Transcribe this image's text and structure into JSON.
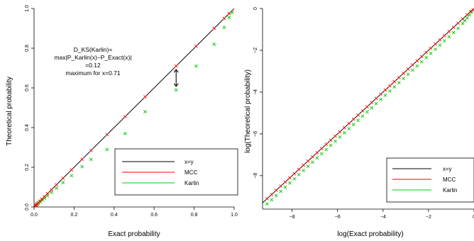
{
  "chart_data": [
    {
      "type": "scatter",
      "xlabel": "Exact probability",
      "ylabel": "Theoretical probability",
      "xlim": [
        0,
        1
      ],
      "ylim": [
        0,
        1
      ],
      "xticks": [
        "0.0",
        "0.2",
        "0.4",
        "0.6",
        "0.8",
        "1.0"
      ],
      "yticks": [
        "0.0",
        "0.2",
        "0.4",
        "0.6",
        "0.8",
        "1.0"
      ],
      "grid": false,
      "legend_position": "bottom-right",
      "annotation": {
        "lines": [
          "D_KS(Karlin)=",
          "max|P_Karlin(x)−P_Exact(x)|",
          "=0.12",
          "maximum for x=0.71"
        ],
        "arrow": {
          "x": 0.71,
          "y_from": 0.71,
          "y_to": 0.59
        }
      },
      "series": [
        {
          "name": "x=y",
          "kind": "line",
          "color": "#000000"
        },
        {
          "name": "MCC",
          "kind": "points",
          "color": "#ff0000",
          "x": [
            0.005,
            0.008,
            0.012,
            0.016,
            0.022,
            0.03,
            0.04,
            0.052,
            0.067,
            0.087,
            0.112,
            0.145,
            0.187,
            0.24,
            0.285,
            0.365,
            0.455,
            0.555,
            0.71,
            0.81,
            0.9,
            0.95,
            0.975,
            1.0
          ],
          "y": [
            0.005,
            0.008,
            0.012,
            0.016,
            0.022,
            0.03,
            0.04,
            0.052,
            0.067,
            0.087,
            0.112,
            0.145,
            0.187,
            0.24,
            0.285,
            0.365,
            0.455,
            0.555,
            0.71,
            0.81,
            0.9,
            0.95,
            0.975,
            1.0
          ]
        },
        {
          "name": "Karlin",
          "kind": "points",
          "color": "#00cc00",
          "x": [
            0.008,
            0.012,
            0.016,
            0.022,
            0.03,
            0.04,
            0.052,
            0.067,
            0.087,
            0.112,
            0.145,
            0.187,
            0.24,
            0.285,
            0.365,
            0.455,
            0.555,
            0.71,
            0.81,
            0.9,
            0.95,
            0.975,
            0.99
          ],
          "y": [
            0.007,
            0.01,
            0.014,
            0.019,
            0.026,
            0.034,
            0.044,
            0.057,
            0.074,
            0.095,
            0.123,
            0.158,
            0.203,
            0.24,
            0.29,
            0.37,
            0.48,
            0.59,
            0.71,
            0.82,
            0.905,
            0.955,
            0.98
          ]
        }
      ]
    },
    {
      "type": "scatter",
      "xlabel": "log(Exact probability)",
      "ylabel": "log(Theoretical probability)",
      "xlim": [
        -9.3,
        0
      ],
      "ylim": [
        -9.6,
        0
      ],
      "xticks": [
        "−8",
        "−6",
        "−4",
        "−2",
        "0"
      ],
      "yticks": [
        "−8",
        "−6",
        "−4",
        "−2",
        "0"
      ],
      "grid": false,
      "legend_position": "bottom-right",
      "series": [
        {
          "name": "x=y",
          "kind": "line",
          "color": "#000000"
        },
        {
          "name": "MCC",
          "kind": "points",
          "color": "#ff0000",
          "x": [
            -9.1,
            -8.9,
            -8.7,
            -8.5,
            -8.3,
            -8.1,
            -7.9,
            -7.7,
            -7.5,
            -7.3,
            -7.1,
            -6.9,
            -6.7,
            -6.5,
            -6.3,
            -6.1,
            -5.9,
            -5.7,
            -5.5,
            -5.3,
            -5.1,
            -4.9,
            -4.7,
            -4.5,
            -4.3,
            -4.1,
            -3.9,
            -3.7,
            -3.5,
            -3.3,
            -3.1,
            -2.9,
            -2.7,
            -2.5,
            -2.3,
            -2.1,
            -1.9,
            -1.7,
            -1.5,
            -1.3,
            -1.1,
            -0.9,
            -0.7,
            -0.5,
            -0.3,
            -0.15,
            -0.05,
            0.0
          ],
          "y": [
            -9.1,
            -8.9,
            -8.7,
            -8.5,
            -8.3,
            -8.1,
            -7.9,
            -7.7,
            -7.5,
            -7.3,
            -7.1,
            -6.9,
            -6.7,
            -6.5,
            -6.3,
            -6.1,
            -5.9,
            -5.7,
            -5.5,
            -5.3,
            -5.1,
            -4.9,
            -4.7,
            -4.5,
            -4.3,
            -4.1,
            -3.9,
            -3.7,
            -3.5,
            -3.3,
            -3.1,
            -2.9,
            -2.7,
            -2.5,
            -2.3,
            -2.1,
            -1.9,
            -1.7,
            -1.5,
            -1.3,
            -1.1,
            -0.9,
            -0.7,
            -0.5,
            -0.3,
            -0.15,
            -0.05,
            0.0
          ]
        },
        {
          "name": "Karlin",
          "kind": "points",
          "color": "#00cc00",
          "x": [
            -9.1,
            -8.9,
            -8.7,
            -8.5,
            -8.3,
            -8.1,
            -7.9,
            -7.7,
            -7.5,
            -7.3,
            -7.1,
            -6.9,
            -6.7,
            -6.5,
            -6.3,
            -6.1,
            -5.9,
            -5.7,
            -5.5,
            -5.3,
            -5.1,
            -4.9,
            -4.7,
            -4.5,
            -4.3,
            -4.1,
            -3.9,
            -3.7,
            -3.5,
            -3.3,
            -3.1,
            -2.9,
            -2.7,
            -2.5,
            -2.3,
            -2.1,
            -1.9,
            -1.7,
            -1.5,
            -1.3,
            -1.1,
            -0.9,
            -0.7,
            -0.5,
            -0.4,
            -0.3,
            -0.2,
            -0.1
          ],
          "y": [
            -9.35,
            -9.15,
            -8.95,
            -8.75,
            -8.55,
            -8.35,
            -8.15,
            -7.95,
            -7.75,
            -7.55,
            -7.35,
            -7.15,
            -6.95,
            -6.75,
            -6.55,
            -6.35,
            -6.15,
            -5.95,
            -5.75,
            -5.55,
            -5.35,
            -5.15,
            -4.95,
            -4.75,
            -4.55,
            -4.35,
            -4.15,
            -3.95,
            -3.75,
            -3.55,
            -3.35,
            -3.15,
            -2.95,
            -2.75,
            -2.55,
            -2.35,
            -2.15,
            -1.95,
            -1.75,
            -1.55,
            -1.35,
            -1.15,
            -0.95,
            -0.72,
            -0.58,
            -0.45,
            -0.3,
            -0.15
          ]
        }
      ]
    }
  ]
}
